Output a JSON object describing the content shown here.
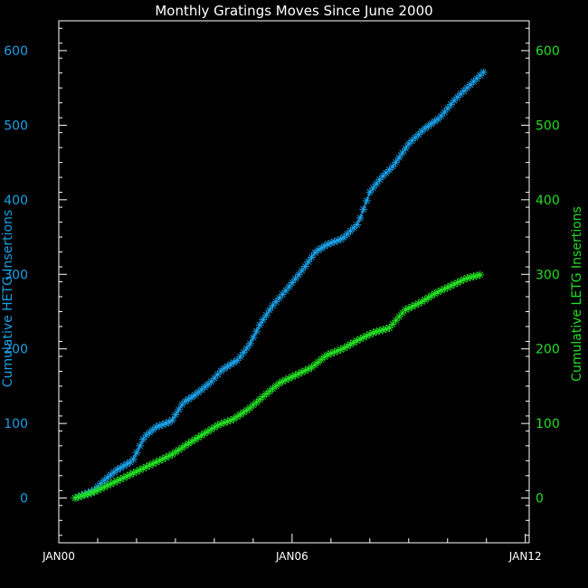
{
  "chart_data": {
    "type": "line",
    "title": "Monthly Gratings Moves Since June 2000",
    "xlabel": "",
    "ylabel_left": "Cumulative HETG Insertions",
    "ylabel_right": "Cumulative LETG Insertions",
    "x_ticks": [
      "JAN00",
      "JAN06",
      "JAN12"
    ],
    "x_tick_years": [
      2000,
      2006,
      2012
    ],
    "xlim_years": [
      2000,
      2012.1
    ],
    "ylim": [
      -60,
      640
    ],
    "y_ticks": [
      0,
      100,
      200,
      300,
      400,
      500,
      600
    ],
    "left_axis_color": "#1aa0e6",
    "right_axis_color": "#22dd22",
    "marker": "asterisk",
    "grid": false,
    "series": [
      {
        "name": "HETG",
        "axis": "left",
        "color": "#1aa0e6",
        "key_points": [
          [
            2000.42,
            0
          ],
          [
            2000.9,
            10
          ],
          [
            2001.2,
            25
          ],
          [
            2001.5,
            38
          ],
          [
            2001.9,
            50
          ],
          [
            2002.2,
            82
          ],
          [
            2002.5,
            95
          ],
          [
            2002.9,
            103
          ],
          [
            2003.2,
            128
          ],
          [
            2003.5,
            138
          ],
          [
            2003.9,
            155
          ],
          [
            2004.2,
            172
          ],
          [
            2004.6,
            185
          ],
          [
            2004.9,
            205
          ],
          [
            2005.2,
            235
          ],
          [
            2005.5,
            258
          ],
          [
            2005.9,
            282
          ],
          [
            2006.3,
            308
          ],
          [
            2006.6,
            330
          ],
          [
            2006.9,
            340
          ],
          [
            2007.3,
            348
          ],
          [
            2007.7,
            368
          ],
          [
            2008.0,
            410
          ],
          [
            2008.3,
            430
          ],
          [
            2008.6,
            445
          ],
          [
            2009.0,
            475
          ],
          [
            2009.4,
            495
          ],
          [
            2009.8,
            510
          ],
          [
            2010.2,
            535
          ],
          [
            2010.6,
            555
          ],
          [
            2011.0,
            575
          ]
        ]
      },
      {
        "name": "LETG",
        "axis": "right",
        "color": "#22dd22",
        "key_points": [
          [
            2000.42,
            0
          ],
          [
            2000.9,
            8
          ],
          [
            2001.3,
            18
          ],
          [
            2001.7,
            28
          ],
          [
            2002.1,
            38
          ],
          [
            2002.5,
            48
          ],
          [
            2002.9,
            58
          ],
          [
            2003.3,
            72
          ],
          [
            2003.7,
            85
          ],
          [
            2004.1,
            98
          ],
          [
            2004.5,
            106
          ],
          [
            2004.9,
            120
          ],
          [
            2005.3,
            138
          ],
          [
            2005.7,
            155
          ],
          [
            2006.1,
            165
          ],
          [
            2006.5,
            175
          ],
          [
            2006.9,
            192
          ],
          [
            2007.3,
            200
          ],
          [
            2007.7,
            212
          ],
          [
            2008.1,
            222
          ],
          [
            2008.5,
            228
          ],
          [
            2008.9,
            252
          ],
          [
            2009.3,
            262
          ],
          [
            2009.7,
            275
          ],
          [
            2010.1,
            285
          ],
          [
            2010.5,
            295
          ],
          [
            2010.9,
            300
          ]
        ]
      }
    ]
  }
}
